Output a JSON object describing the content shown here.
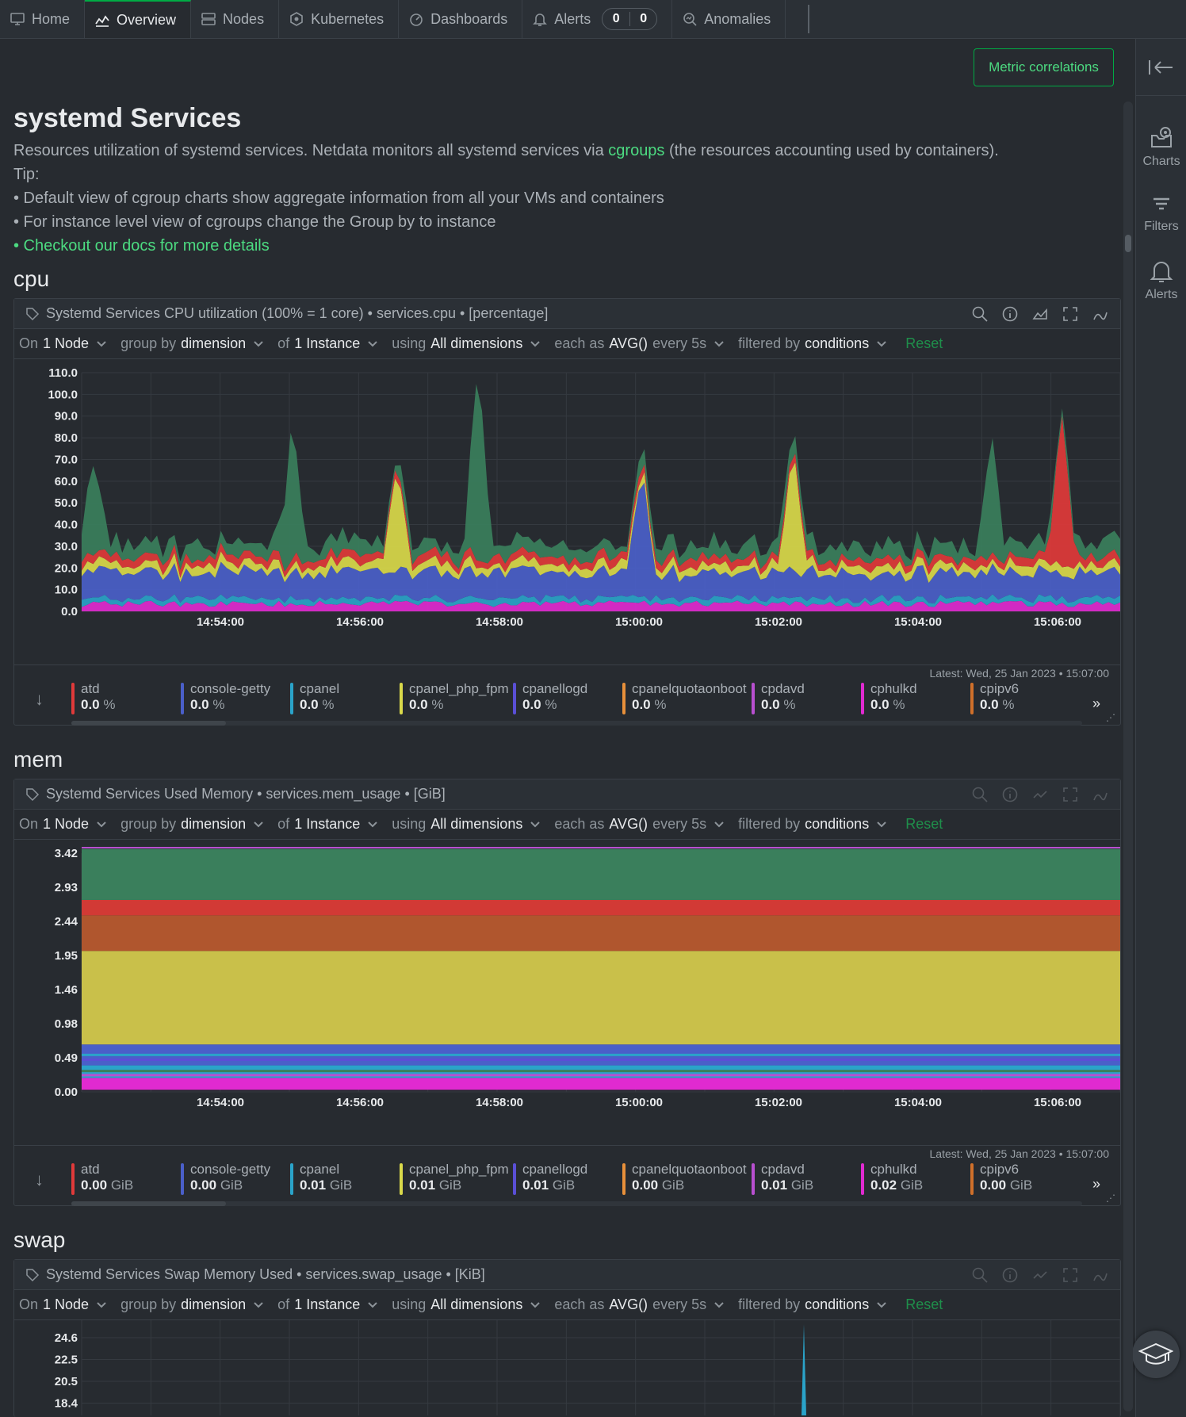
{
  "nav": {
    "tabs": [
      {
        "label": "Home",
        "icon": "monitor-icon"
      },
      {
        "label": "Overview",
        "icon": "chart-icon",
        "active": true
      },
      {
        "label": "Nodes",
        "icon": "server-icon"
      },
      {
        "label": "Kubernetes",
        "icon": "kubernetes-icon"
      },
      {
        "label": "Dashboards",
        "icon": "gauge-icon"
      },
      {
        "label": "Alerts",
        "icon": "bell-icon"
      },
      {
        "label": "Anomalies",
        "icon": "anomaly-icon"
      }
    ],
    "alert_counts": [
      "0",
      "0"
    ]
  },
  "sidebar": {
    "charts": "Charts",
    "filters": "Filters",
    "alerts": "Alerts"
  },
  "metric_correlations": "Metric correlations",
  "intro": {
    "title": "systemd Services",
    "desc_prefix": "Resources utilization of systemd services. Netdata monitors all systemd services via ",
    "desc_link": "cgroups",
    "desc_suffix": " (the resources accounting used by containers).",
    "tip": "Tip:",
    "bullet1": "• Default view of cgroup charts show aggregate information from all your VMs and containers",
    "bullet2": "• For instance level view of cgroups change the Group by to instance",
    "bullet3": "• Checkout our docs for more details"
  },
  "filters": {
    "on_label": "On",
    "on_value": "1 Node",
    "group_label": "group by",
    "group_value": "dimension",
    "of_label": "of",
    "of_value": "1 Instance",
    "using_label": "using",
    "using_value": "All dimensions",
    "each_label": "each as",
    "each_value": "AVG()",
    "every": "every 5s",
    "filtered_label": "filtered by",
    "filtered_value": "conditions",
    "reset": "Reset"
  },
  "legend_latest": "Latest:  Wed, 25 Jan 2023 • 15:07:00",
  "legend_more": "»",
  "colors": {
    "atd": "#e03a3a",
    "console-getty": "#4a5fc9",
    "cpanel": "#2aa3c9",
    "cpanel_php_fpm": "#d9d94a",
    "cpanellogd": "#5a4fd6",
    "cpanelquotaonboot": "#e8903a",
    "cpdavd": "#b84fd0",
    "cphulkd": "#e02ad0",
    "cpipv6": "#d0702a"
  },
  "sections": {
    "cpu": {
      "heading": "cpu",
      "title": "Systemd Services CPU utilization (100% = 1 core) • services.cpu • [percentage]",
      "legend": [
        {
          "name": "atd",
          "value": "0.0",
          "unit": "%"
        },
        {
          "name": "console-getty",
          "value": "0.0",
          "unit": "%"
        },
        {
          "name": "cpanel",
          "value": "0.0",
          "unit": "%"
        },
        {
          "name": "cpanel_php_fpm",
          "value": "0.0",
          "unit": "%"
        },
        {
          "name": "cpanellogd",
          "value": "0.0",
          "unit": "%"
        },
        {
          "name": "cpanelquotaonboot",
          "value": "0.0",
          "unit": "%"
        },
        {
          "name": "cpdavd",
          "value": "0.0",
          "unit": "%"
        },
        {
          "name": "cphulkd",
          "value": "0.0",
          "unit": "%"
        },
        {
          "name": "cpipv6",
          "value": "0.0",
          "unit": "%"
        }
      ]
    },
    "mem": {
      "heading": "mem",
      "title": "Systemd Services Used Memory • services.mem_usage • [GiB]",
      "legend": [
        {
          "name": "atd",
          "value": "0.00",
          "unit": "GiB"
        },
        {
          "name": "console-getty",
          "value": "0.00",
          "unit": "GiB"
        },
        {
          "name": "cpanel",
          "value": "0.01",
          "unit": "GiB"
        },
        {
          "name": "cpanel_php_fpm",
          "value": "0.01",
          "unit": "GiB"
        },
        {
          "name": "cpanellogd",
          "value": "0.01",
          "unit": "GiB"
        },
        {
          "name": "cpanelquotaonboot",
          "value": "0.00",
          "unit": "GiB"
        },
        {
          "name": "cpdavd",
          "value": "0.01",
          "unit": "GiB"
        },
        {
          "name": "cphulkd",
          "value": "0.02",
          "unit": "GiB"
        },
        {
          "name": "cpipv6",
          "value": "0.00",
          "unit": "GiB"
        }
      ]
    },
    "swap": {
      "heading": "swap",
      "title": "Systemd Services Swap Memory Used • services.swap_usage • [KiB]"
    }
  },
  "chart_data": [
    {
      "type": "area",
      "title": "Systemd Services CPU utilization (100% = 1 core) • services.cpu • [percentage]",
      "ylabel": "percentage",
      "ylim": [
        0,
        110
      ],
      "yticks": [
        "110.0",
        "100.0",
        "90.0",
        "80.0",
        "70.0",
        "60.0",
        "50.0",
        "40.0",
        "30.0",
        "20.0",
        "10.0",
        "0.0"
      ],
      "xticks": [
        "14:54:00",
        "14:56:00",
        "14:58:00",
        "15:00:00",
        "15:02:00",
        "15:04:00",
        "15:06:00"
      ],
      "x_range": [
        "14:52:10",
        "15:07:00"
      ],
      "peaks": [
        {
          "x": "14:52:20",
          "y": 64
        },
        {
          "x": "14:55:10",
          "y": 82
        },
        {
          "x": "14:56:40",
          "y": 72
        },
        {
          "x": "14:57:50",
          "y": 115
        },
        {
          "x": "15:00:10",
          "y": 73
        },
        {
          "x": "15:02:20",
          "y": 79
        },
        {
          "x": "15:05:10",
          "y": 74
        },
        {
          "x": "15:06:10",
          "y": 93
        }
      ],
      "typical_total": 25
    },
    {
      "type": "area",
      "title": "Systemd Services Used Memory • services.mem_usage • [GiB]",
      "ylabel": "GiB",
      "ylim": [
        0,
        3.58
      ],
      "yticks": [
        "3.42",
        "2.93",
        "2.44",
        "1.95",
        "1.46",
        "0.98",
        "0.49",
        "0.00"
      ],
      "xticks": [
        "14:54:00",
        "14:56:00",
        "14:58:00",
        "15:00:00",
        "15:02:00",
        "15:04:00",
        "15:06:00"
      ],
      "bands_gib": [
        {
          "color": "#e02ad0",
          "from": 0.03,
          "to": 0.2
        },
        {
          "color": "#2aa3c9",
          "from": 0.2,
          "to": 0.38
        },
        {
          "color": "#4a5fc9",
          "from": 0.38,
          "to": 0.68
        },
        {
          "color": "#c9c04a",
          "from": 0.68,
          "to": 2.02
        },
        {
          "color": "#b0562e",
          "from": 2.02,
          "to": 2.53
        },
        {
          "color": "#d23a35",
          "from": 2.53,
          "to": 2.75
        },
        {
          "color": "#3a7f5c",
          "from": 2.75,
          "to": 3.48
        }
      ]
    },
    {
      "type": "area",
      "title": "Systemd Services Swap Memory Used • services.swap_usage • [KiB]",
      "ylabel": "KiB",
      "yticks": [
        "24.6",
        "22.5",
        "20.5",
        "18.4"
      ],
      "spike_at": "15:02:20"
    }
  ]
}
